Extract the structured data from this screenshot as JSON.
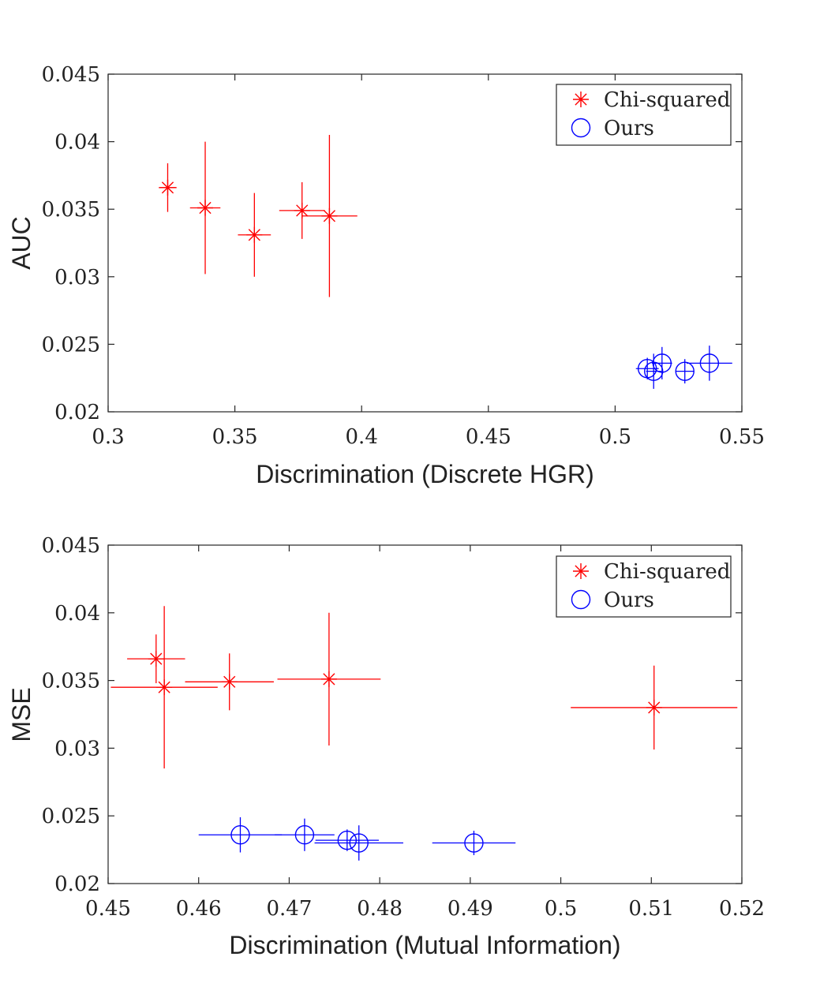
{
  "chart_data": [
    {
      "type": "scatter",
      "title": "",
      "xlabel": "Discrimination (Discrete HGR)",
      "ylabel": "AUC",
      "xlim": [
        0.3,
        0.55
      ],
      "ylim": [
        0.02,
        0.045
      ],
      "xticks": [
        "0.3",
        "0.35",
        "0.4",
        "0.45",
        "0.5",
        "0.55"
      ],
      "yticks": [
        "0.02",
        "0.025",
        "0.03",
        "0.035",
        "0.04",
        "0.045"
      ],
      "grid": false,
      "legend_position": "top-right",
      "series": [
        {
          "name": "Chi-squared",
          "color": "#ff0000",
          "marker": "asterisk",
          "points": [
            {
              "x": 0.3235,
              "y": 0.0366,
              "xerr": 0.0035,
              "yerr": 0.0018
            },
            {
              "x": 0.3383,
              "y": 0.0351,
              "xerr": 0.006,
              "yerr": 0.0049
            },
            {
              "x": 0.3577,
              "y": 0.0331,
              "xerr": 0.0065,
              "yerr": 0.0031
            },
            {
              "x": 0.3765,
              "y": 0.0349,
              "xerr": 0.009,
              "yerr": 0.0021
            },
            {
              "x": 0.3873,
              "y": 0.0345,
              "xerr": 0.011,
              "yerr": 0.006
            }
          ]
        },
        {
          "name": "Ours",
          "color": "#0000ff",
          "marker": "circle",
          "points": [
            {
              "x": 0.5127,
              "y": 0.0232,
              "xerr": 0.0045,
              "yerr": 0.0008
            },
            {
              "x": 0.5152,
              "y": 0.023,
              "xerr": 0.003,
              "yerr": 0.0013
            },
            {
              "x": 0.5185,
              "y": 0.0236,
              "xerr": 0.004,
              "yerr": 0.0012
            },
            {
              "x": 0.5275,
              "y": 0.023,
              "xerr": 0.0035,
              "yerr": 0.0009
            },
            {
              "x": 0.5372,
              "y": 0.0236,
              "xerr": 0.009,
              "yerr": 0.0013
            }
          ]
        }
      ]
    },
    {
      "type": "scatter",
      "title": "",
      "xlabel": "Discrimination (Mutual Information)",
      "ylabel": "MSE",
      "xlim": [
        0.45,
        0.52
      ],
      "ylim": [
        0.02,
        0.045
      ],
      "xticks": [
        "0.45",
        "0.46",
        "0.47",
        "0.48",
        "0.49",
        "0.5",
        "0.51",
        "0.52"
      ],
      "yticks": [
        "0.02",
        "0.025",
        "0.03",
        "0.035",
        "0.04",
        "0.045"
      ],
      "grid": false,
      "legend_position": "top-right",
      "series": [
        {
          "name": "Chi-squared",
          "color": "#ff0000",
          "marker": "asterisk",
          "points": [
            {
              "x": 0.4553,
              "y": 0.0366,
              "xerr": 0.0032,
              "yerr": 0.0018
            },
            {
              "x": 0.4562,
              "y": 0.0345,
              "xerr": 0.0059,
              "yerr": 0.006
            },
            {
              "x": 0.4634,
              "y": 0.0349,
              "xerr": 0.0049,
              "yerr": 0.0021
            },
            {
              "x": 0.4744,
              "y": 0.0351,
              "xerr": 0.0057,
              "yerr": 0.0049
            },
            {
              "x": 0.5103,
              "y": 0.033,
              "xerr": 0.0092,
              "yerr": 0.0031
            }
          ]
        },
        {
          "name": "Ours",
          "color": "#0000ff",
          "marker": "circle",
          "points": [
            {
              "x": 0.4646,
              "y": 0.0236,
              "xerr": 0.0046,
              "yerr": 0.0013
            },
            {
              "x": 0.4717,
              "y": 0.0236,
              "xerr": 0.0033,
              "yerr": 0.0012
            },
            {
              "x": 0.4764,
              "y": 0.0232,
              "xerr": 0.0035,
              "yerr": 0.0008
            },
            {
              "x": 0.4777,
              "y": 0.023,
              "xerr": 0.0049,
              "yerr": 0.0013
            },
            {
              "x": 0.4904,
              "y": 0.023,
              "xerr": 0.0046,
              "yerr": 0.0009
            }
          ]
        }
      ]
    }
  ]
}
